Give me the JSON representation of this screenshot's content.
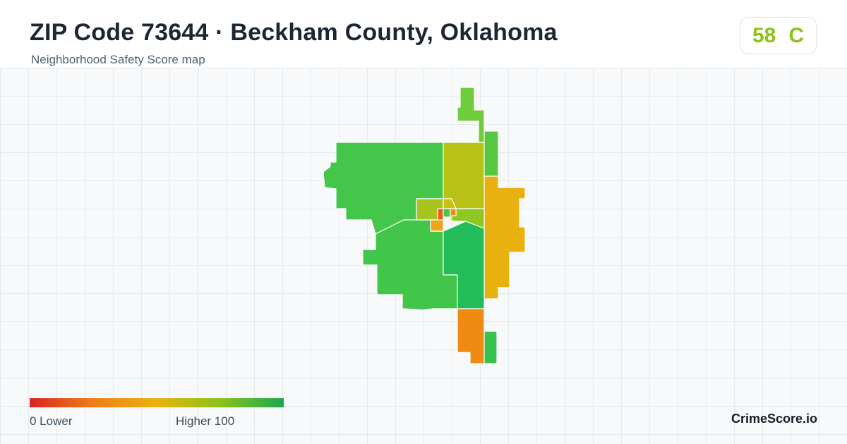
{
  "header": {
    "title": "ZIP Code 73644 · Beckham County, Oklahoma",
    "subtitle": "Neighborhood Safety Score map"
  },
  "score": {
    "value": "58",
    "grade": "C",
    "color": "#8cc21a"
  },
  "legend": {
    "min_label": "0  Lower",
    "max_label": "Higher  100",
    "colors": [
      "#d7261e",
      "#ef7d1a",
      "#e8b40c",
      "#8cc21a",
      "#1aa750"
    ]
  },
  "map": {
    "regions": [
      {
        "name": "northwest-tract",
        "color": "#43c649"
      },
      {
        "name": "north-center-tract",
        "color": "#b8c114"
      },
      {
        "name": "north-strip-tract",
        "color": "#6fcc3a"
      },
      {
        "name": "east-strip-tract",
        "color": "#58c740"
      },
      {
        "name": "east-tract",
        "color": "#e8b10f"
      },
      {
        "name": "southwest-tract",
        "color": "#42c64a"
      },
      {
        "name": "south-center-tract",
        "color": "#22bc58"
      },
      {
        "name": "south-tract",
        "color": "#ef8a13"
      },
      {
        "name": "southeast-strip-tract",
        "color": "#38c24c"
      },
      {
        "name": "downtown-west-tract",
        "color": "#a6c41d"
      },
      {
        "name": "downtown-east-tract",
        "color": "#8cc81f"
      },
      {
        "name": "downtown-south-tract",
        "color": "#f0a418"
      },
      {
        "name": "downtown-core-a",
        "color": "#ee5a1c"
      },
      {
        "name": "downtown-core-b",
        "color": "#43c649"
      },
      {
        "name": "downtown-core-c",
        "color": "#f08a17"
      },
      {
        "name": "downtown-core-d",
        "color": "#c8c210"
      }
    ]
  },
  "brand": {
    "label": "CrimeScore.io"
  }
}
